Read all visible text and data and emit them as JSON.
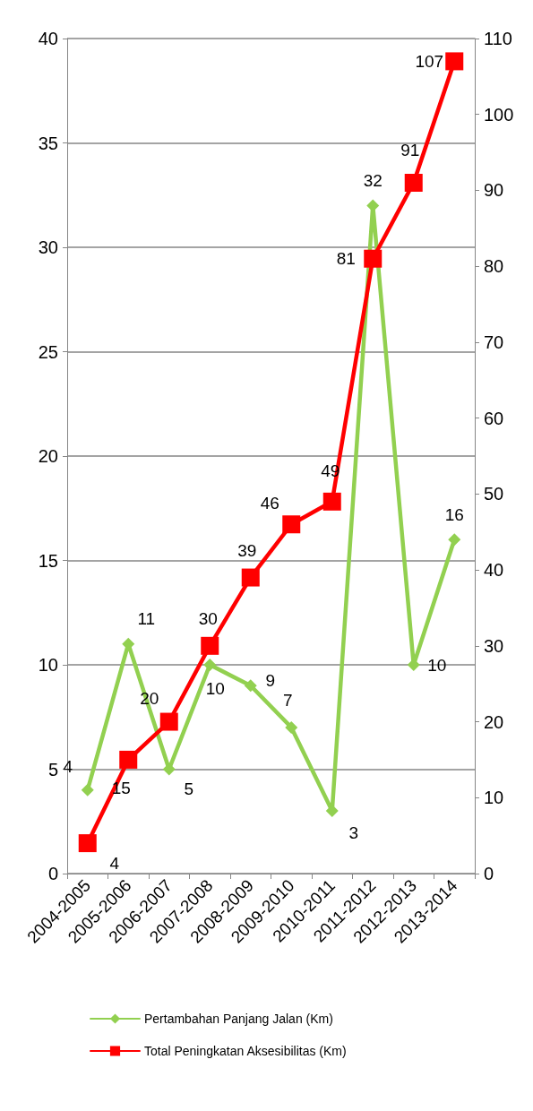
{
  "chart_data": {
    "type": "line",
    "categories": [
      "2004-2005",
      "2005-2006",
      "2006-2007",
      "2007-2008",
      "2008-2009",
      "2009-2010",
      "2010-2011",
      "2011-2012",
      "2012-2013",
      "2013-2014"
    ],
    "series": [
      {
        "name": "Pertambahan Panjang Jalan (Km)",
        "color": "#92d050",
        "marker": "diamond",
        "values": [
          4,
          11,
          5,
          10,
          9,
          7,
          3,
          32,
          10,
          16
        ]
      },
      {
        "name": "Total Peningkatan Aksesibilitas (Km)",
        "color": "#ff0000",
        "marker": "square",
        "axis": "y2",
        "values": [
          4,
          15,
          20,
          30,
          39,
          46,
          49,
          81,
          91,
          107
        ]
      }
    ],
    "ylim": [
      0,
      40
    ],
    "yticks": [
      0,
      5,
      10,
      15,
      20,
      25,
      30,
      35,
      40
    ],
    "y2lim": [
      0,
      110
    ],
    "y2ticks": [
      0,
      10,
      20,
      30,
      40,
      50,
      60,
      70,
      80,
      90,
      100,
      110
    ],
    "grid": "y",
    "legend": "bottom",
    "data_labels": true
  }
}
